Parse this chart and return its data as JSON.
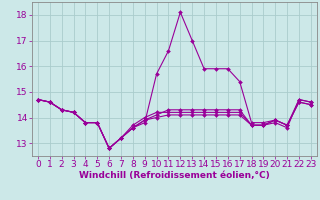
{
  "xlabel": "Windchill (Refroidissement éolien,°C)",
  "background_color": "#cce8e8",
  "grid_color": "#aacccc",
  "line_color": "#990099",
  "spine_color": "#888888",
  "x_values": [
    0,
    1,
    2,
    3,
    4,
    5,
    6,
    7,
    8,
    9,
    10,
    11,
    12,
    13,
    14,
    15,
    16,
    17,
    18,
    19,
    20,
    21,
    22,
    23
  ],
  "x_labels": [
    "0",
    "1",
    "2",
    "3",
    "4",
    "5",
    "6",
    "7",
    "8",
    "9",
    "10",
    "11",
    "12",
    "13",
    "14",
    "15",
    "16",
    "17",
    "18",
    "19",
    "20",
    "21",
    "22",
    "23"
  ],
  "series": [
    [
      14.7,
      14.6,
      14.3,
      14.2,
      13.8,
      13.8,
      12.8,
      13.2,
      13.6,
      13.8,
      15.7,
      16.6,
      18.1,
      17.0,
      15.9,
      15.9,
      15.9,
      15.4,
      13.8,
      13.8,
      13.9,
      13.7,
      14.7,
      14.6
    ],
    [
      14.7,
      14.6,
      14.3,
      14.2,
      13.8,
      13.8,
      12.8,
      13.2,
      13.6,
      13.9,
      14.1,
      14.3,
      14.3,
      14.3,
      14.3,
      14.3,
      14.3,
      14.3,
      13.7,
      13.7,
      13.8,
      13.6,
      14.7,
      14.6
    ],
    [
      14.7,
      14.6,
      14.3,
      14.2,
      13.8,
      13.8,
      12.8,
      13.2,
      13.7,
      14.0,
      14.2,
      14.2,
      14.2,
      14.2,
      14.2,
      14.2,
      14.2,
      14.2,
      13.7,
      13.7,
      13.9,
      13.7,
      14.6,
      14.5
    ],
    [
      14.7,
      14.6,
      14.3,
      14.2,
      13.8,
      13.8,
      12.8,
      13.2,
      13.6,
      13.9,
      14.0,
      14.1,
      14.1,
      14.1,
      14.1,
      14.1,
      14.1,
      14.1,
      13.7,
      13.7,
      13.9,
      13.7,
      14.6,
      14.5
    ]
  ],
  "ylim": [
    12.5,
    18.5
  ],
  "yticks": [
    13,
    14,
    15,
    16,
    17,
    18
  ],
  "xlim": [
    -0.5,
    23.5
  ],
  "linewidth": 0.8,
  "markersize": 2.0,
  "tick_fontsize": 6.5,
  "xlabel_fontsize": 6.5
}
